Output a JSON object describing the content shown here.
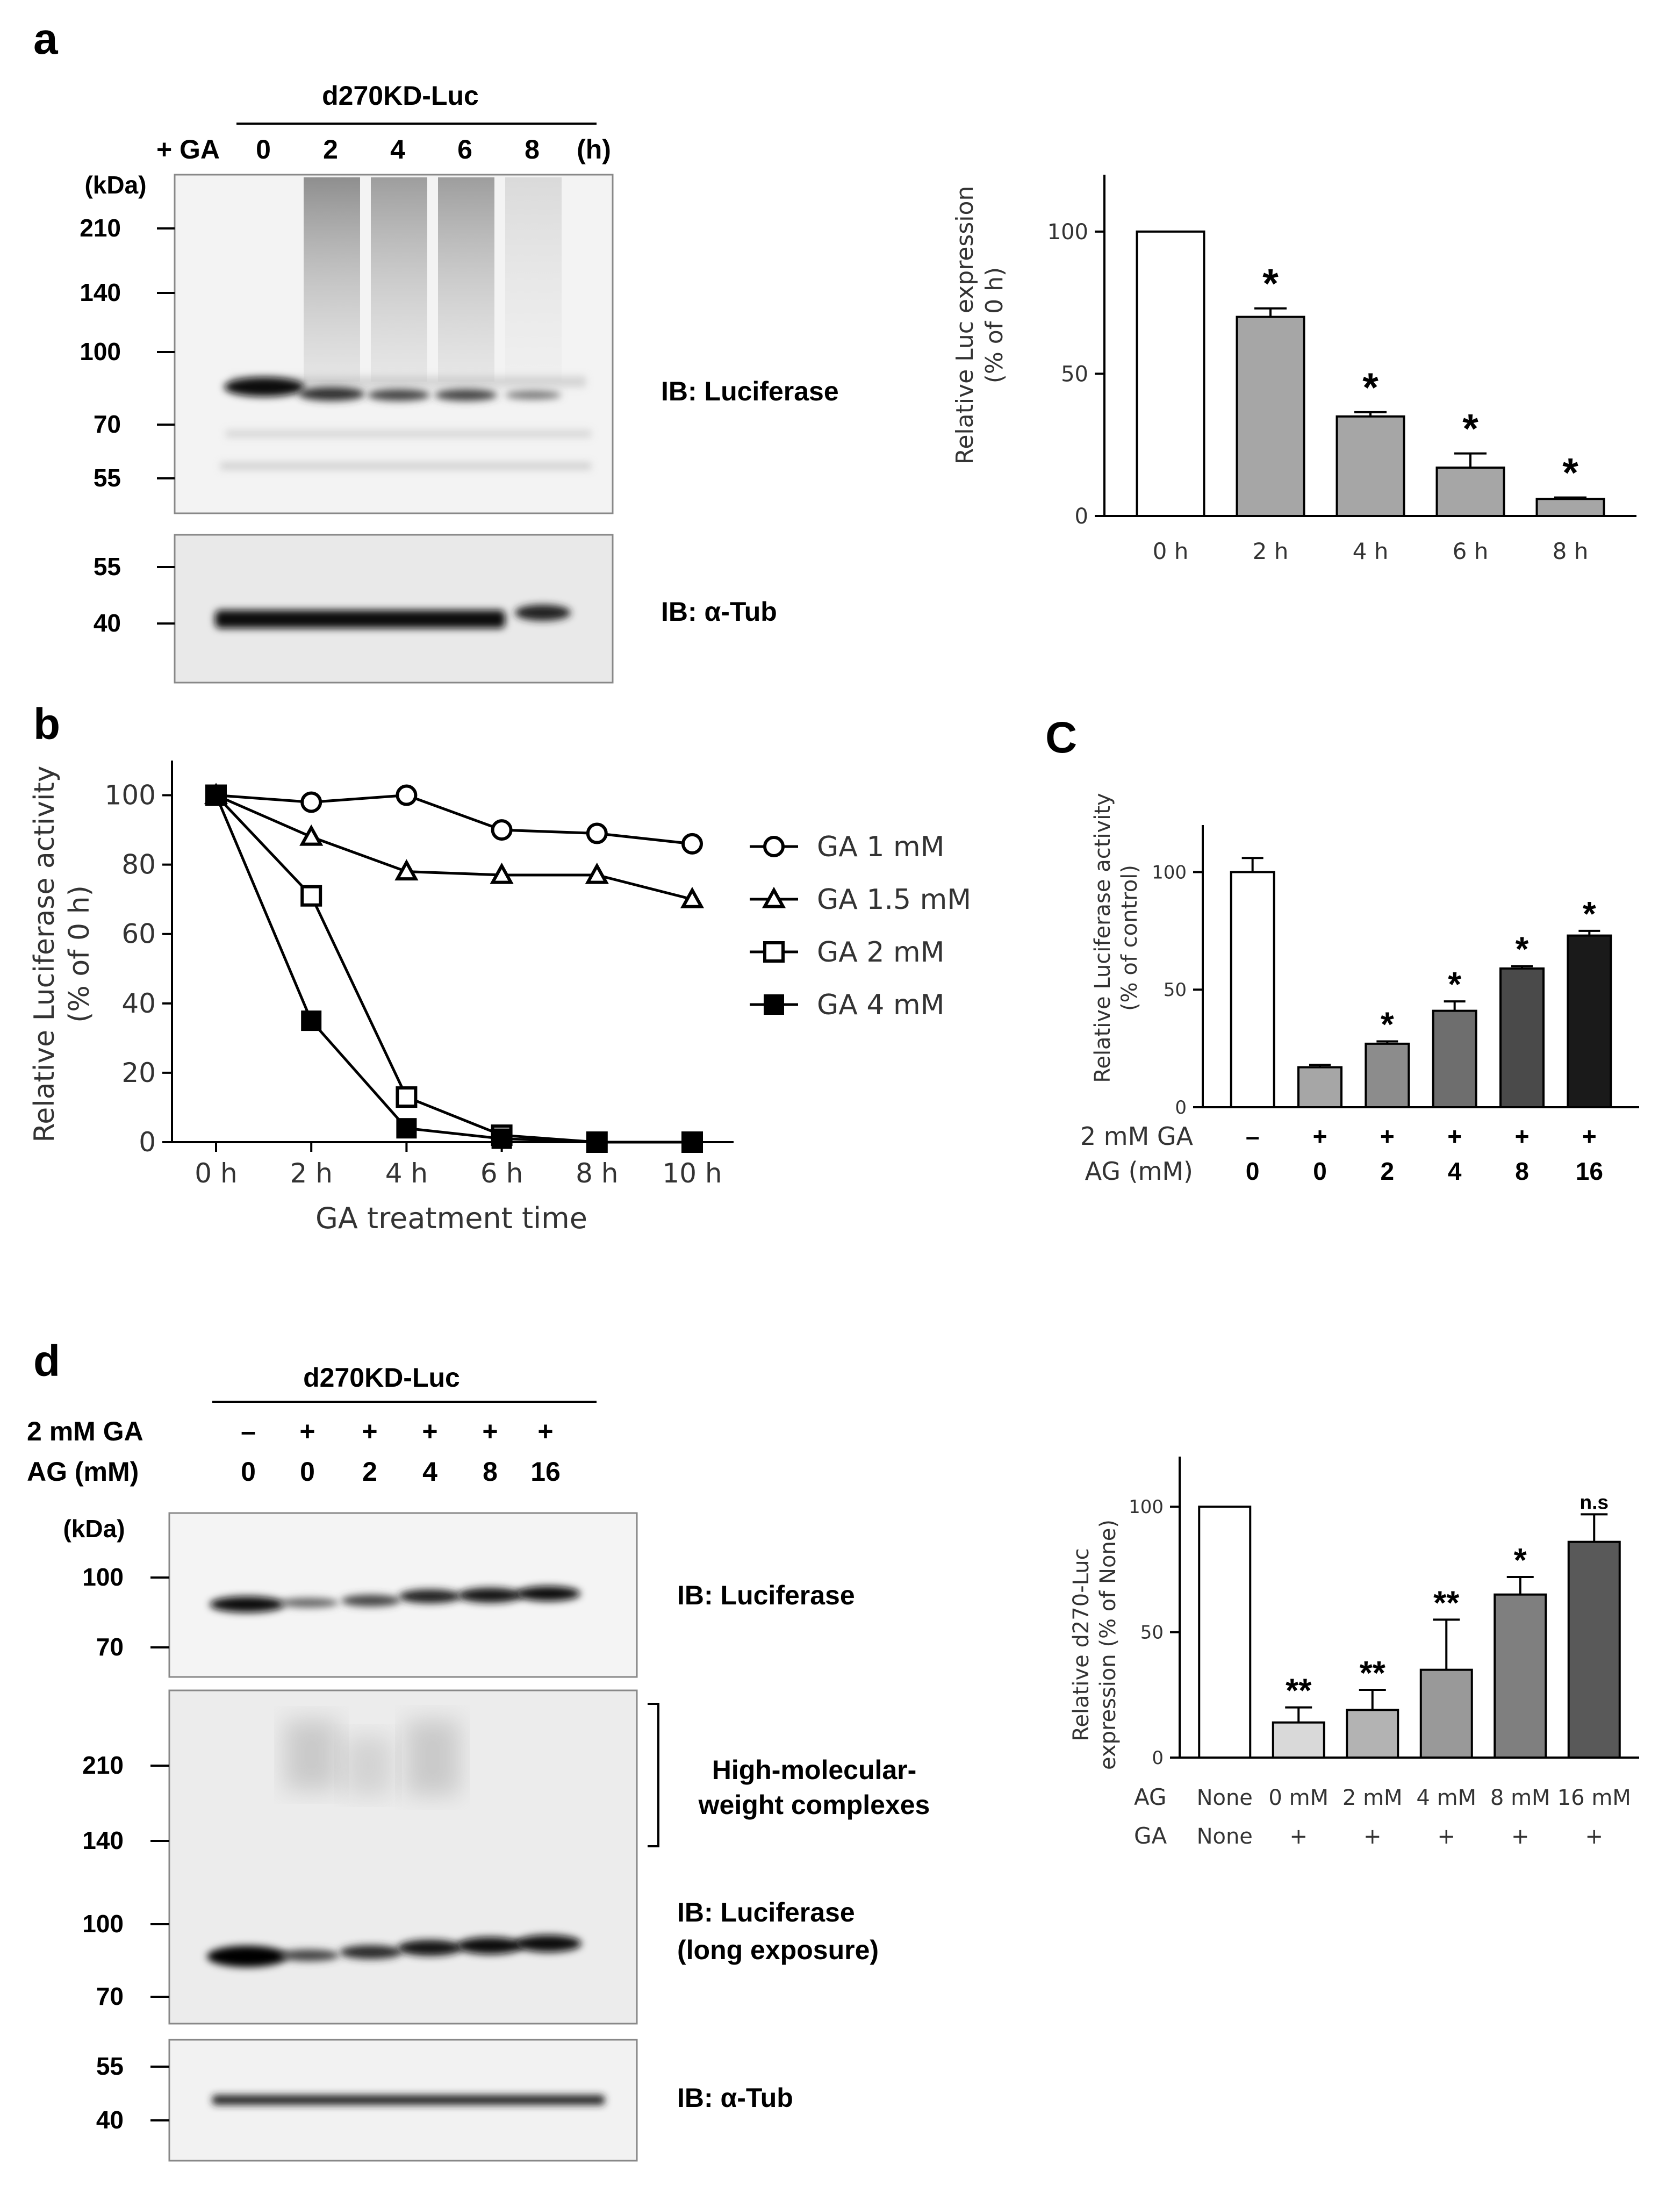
{
  "panel_labels": {
    "a": "a",
    "b": "b",
    "c": "C",
    "d": "d"
  },
  "blot_a": {
    "header": "d270KD-Luc",
    "row_label": "+ GA",
    "lanes": [
      "0",
      "2",
      "4",
      "6",
      "8"
    ],
    "unit": "(h)",
    "kda_label": "(kDa)",
    "markers_top": [
      "210",
      "140",
      "100",
      "70",
      "55"
    ],
    "markers_bottom": [
      "55",
      "40"
    ],
    "ib_top": "IB: Luciferase",
    "ib_bottom": "IB: α-Tub"
  },
  "blot_d": {
    "header": "d270KD-Luc",
    "row1_label": "2 mM GA",
    "row1": [
      "–",
      "+",
      "+",
      "+",
      "+",
      "+"
    ],
    "row2_label": "AG (mM)",
    "row2": [
      "0",
      "0",
      "2",
      "4",
      "8",
      "16"
    ],
    "kda_label": "(kDa)",
    "markers_1": [
      "100",
      "70"
    ],
    "markers_2": [
      "210",
      "140",
      "100",
      "70"
    ],
    "markers_3": [
      "55",
      "40"
    ],
    "ib_1": "IB: Luciferase",
    "hmw_1": "High-molecular-",
    "hmw_2": "weight complexes",
    "ib_2a": "IB: Luciferase",
    "ib_2b": "(long exposure)",
    "ib_3": "IB: α-Tub"
  },
  "chart_data": [
    {
      "id": "a",
      "type": "bar",
      "categories": [
        "0 h",
        "2 h",
        "4 h",
        "6 h",
        "8 h"
      ],
      "values": [
        100,
        70,
        35,
        17,
        6
      ],
      "errors": [
        0,
        3,
        1.5,
        5,
        0.5
      ],
      "stars": [
        "",
        "*",
        "*",
        "*",
        "*"
      ],
      "colors": [
        "#ffffff",
        "#a6a6a6",
        "#a6a6a6",
        "#a6a6a6",
        "#a6a6a6"
      ],
      "ylabel_1": "Relative  Luc expression",
      "ylabel_2": "(% of 0 h)",
      "yticks": [
        "0",
        "50",
        "100"
      ],
      "ylim": [
        0,
        120
      ]
    },
    {
      "id": "b",
      "type": "line",
      "x": [
        "0 h",
        "2 h",
        "4 h",
        "6 h",
        "8 h",
        "10 h"
      ],
      "series": [
        {
          "name": "GA 1 mM",
          "marker": "circle",
          "values": [
            100,
            98,
            100,
            90,
            89,
            86
          ]
        },
        {
          "name": "GA 1.5 mM",
          "marker": "triangle",
          "values": [
            100,
            88,
            78,
            77,
            77,
            70
          ]
        },
        {
          "name": "GA 2 mM",
          "marker": "square-open",
          "values": [
            100,
            71,
            13,
            2,
            0,
            0
          ]
        },
        {
          "name": "GA 4 mM",
          "marker": "square-filled",
          "values": [
            100,
            35,
            4,
            1,
            0,
            0
          ]
        }
      ],
      "ylabel_1": "Relative Luciferase activity",
      "ylabel_2": "(% of 0 h)",
      "xlabel": "GA treatment time",
      "yticks": [
        "0",
        "20",
        "40",
        "60",
        "80",
        "100"
      ],
      "ylim": [
        0,
        110
      ]
    },
    {
      "id": "c",
      "type": "bar",
      "categories": [
        "0",
        "0",
        "2",
        "4",
        "8",
        "16"
      ],
      "ga": [
        "–",
        "+",
        "+",
        "+",
        "+",
        "+"
      ],
      "values": [
        100,
        17,
        27,
        41,
        59,
        73
      ],
      "errors": [
        6,
        1,
        1,
        4,
        1,
        2
      ],
      "stars": [
        "",
        "",
        "*",
        "*",
        "*",
        "*"
      ],
      "colors": [
        "#ffffff",
        "#a6a6a6",
        "#8c8c8c",
        "#6e6e6e",
        "#4a4a4a",
        "#1a1a1a"
      ],
      "ylabel_1": "Relative Luciferase activity",
      "ylabel_2": "(% of control)",
      "row1_label": "2 mM GA",
      "row2_label": "AG (mM)",
      "yticks": [
        "0",
        "50",
        "100"
      ],
      "ylim": [
        0,
        120
      ]
    },
    {
      "id": "d",
      "type": "bar",
      "categories": [
        "None",
        "0 mM",
        "2 mM",
        "4 mM",
        "8 mM",
        "16 mM"
      ],
      "ga": [
        "None",
        "+",
        "+",
        "+",
        "+",
        "+"
      ],
      "values": [
        100,
        14,
        19,
        35,
        65,
        86
      ],
      "errors": [
        0,
        6,
        8,
        20,
        7,
        11
      ],
      "stars": [
        "",
        "**",
        "**",
        "**",
        "*",
        "n.s"
      ],
      "colors": [
        "#ffffff",
        "#d9d9d9",
        "#b3b3b3",
        "#999999",
        "#7f7f7f",
        "#595959"
      ],
      "ylabel_1": "Relative d270-Luc",
      "ylabel_2": "expression (% of None)",
      "row1_label": "AG",
      "row2_label": "GA",
      "yticks": [
        "0",
        "50",
        "100"
      ],
      "ylim": [
        0,
        120
      ]
    }
  ]
}
